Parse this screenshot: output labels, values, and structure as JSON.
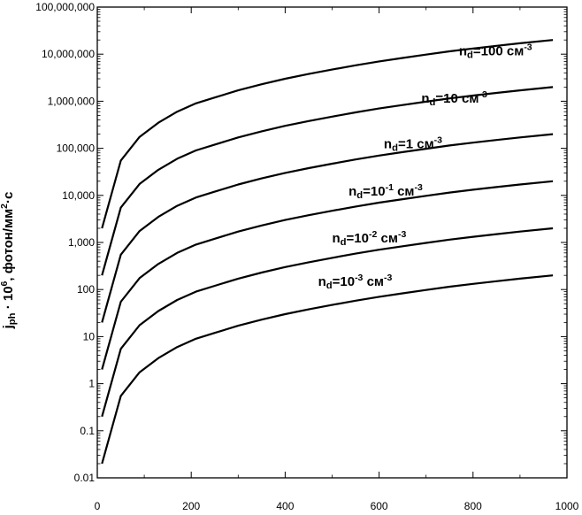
{
  "chart_data": {
    "type": "line",
    "title": "",
    "xlabel": "",
    "ylabel": {
      "parts": [
        {
          "text": "j",
          "style": "normal"
        },
        {
          "text": "ph",
          "style": "sub"
        },
        {
          "text": " · 10",
          "style": "normal"
        },
        {
          "text": "6",
          "style": "sup"
        },
        {
          "text": ", фотон/мм",
          "style": "normal"
        },
        {
          "text": "2",
          "style": "sup"
        },
        {
          "text": "·с",
          "style": "normal"
        }
      ]
    },
    "xlim": [
      0,
      1000
    ],
    "ylim": [
      0.01,
      100000000
    ],
    "yscale": "log",
    "grid": false,
    "x_ticks": [
      0,
      200,
      400,
      600,
      800,
      1000
    ],
    "x_tick_labels": [
      "0",
      "200",
      "400",
      "600",
      "800",
      "1000"
    ],
    "y_ticks": [
      0.01,
      0.1,
      1,
      10,
      100,
      1000,
      10000,
      100000,
      1000000,
      10000000,
      100000000
    ],
    "y_tick_labels": [
      "0.01",
      "0.1",
      "1",
      "10",
      "100",
      "1,000",
      "10,000",
      "100,000",
      "1,000,000",
      "10,000,000",
      "100,000,000"
    ],
    "x": [
      10,
      50,
      90,
      130,
      170,
      210,
      250,
      300,
      350,
      400,
      450,
      500,
      550,
      600,
      650,
      700,
      750,
      800,
      850,
      900,
      970
    ],
    "series": [
      {
        "values": [
          2000,
          55000,
          175000,
          350000,
          600000,
          900000,
          1200000,
          1700000,
          2300000,
          3000000,
          3800000,
          4700000,
          5800000,
          7000000,
          8300000,
          9800000,
          11500000,
          13200000,
          15000000,
          17000000,
          20000000
        ],
        "label": [
          {
            "text": "n",
            "style": "normal"
          },
          {
            "text": "d",
            "style": "sub"
          },
          {
            "text": "=100 см",
            "style": "normal"
          },
          {
            "text": "-3",
            "style": "sup"
          }
        ],
        "label_at": [
          770,
          9500000
        ]
      },
      {
        "values": [
          200,
          5500,
          17500,
          35000,
          60000,
          90000,
          120000,
          170000,
          230000,
          300000,
          380000,
          470000,
          580000,
          700000,
          830000,
          980000,
          1150000,
          1320000,
          1500000,
          1700000,
          2000000
        ],
        "label": [
          {
            "text": "n",
            "style": "normal"
          },
          {
            "text": "d",
            "style": "sub"
          },
          {
            "text": "=10 см",
            "style": "normal"
          },
          {
            "text": "-3",
            "style": "sup"
          }
        ],
        "label_at": [
          690,
          940000
        ]
      },
      {
        "values": [
          20,
          550,
          1750,
          3500,
          6000,
          9000,
          12000,
          17000,
          23000,
          30000,
          38000,
          47000,
          58000,
          70000,
          83000,
          98000,
          115000,
          132000,
          150000,
          170000,
          200000
        ],
        "label": [
          {
            "text": "n",
            "style": "normal"
          },
          {
            "text": "d",
            "style": "sub"
          },
          {
            "text": "=1 см",
            "style": "normal"
          },
          {
            "text": "-3",
            "style": "sup"
          }
        ],
        "label_at": [
          610,
          100000
        ]
      },
      {
        "values": [
          2,
          55,
          175,
          350,
          600,
          900,
          1200,
          1700,
          2300,
          3000,
          3800,
          4700,
          5800,
          7000,
          8300,
          9800,
          11500,
          13200,
          15000,
          17000,
          20000
        ],
        "label": [
          {
            "text": "n",
            "style": "normal"
          },
          {
            "text": "d",
            "style": "sub"
          },
          {
            "text": "=10",
            "style": "normal"
          },
          {
            "text": "-1",
            "style": "sup"
          },
          {
            "text": " см",
            "style": "normal"
          },
          {
            "text": "-3",
            "style": "sup"
          }
        ],
        "label_at": [
          535,
          10000
        ]
      },
      {
        "values": [
          0.2,
          5.5,
          17.5,
          35,
          60,
          90,
          120,
          170,
          230,
          300,
          380,
          470,
          580,
          700,
          830,
          980,
          1150,
          1320,
          1500,
          1700,
          2000
        ],
        "label": [
          {
            "text": "n",
            "style": "normal"
          },
          {
            "text": "d",
            "style": "sub"
          },
          {
            "text": "=10",
            "style": "normal"
          },
          {
            "text": "-2",
            "style": "sup"
          },
          {
            "text": " см",
            "style": "normal"
          },
          {
            "text": "-3",
            "style": "sup"
          }
        ],
        "label_at": [
          500,
          1000
        ]
      },
      {
        "values": [
          0.02,
          0.55,
          1.75,
          3.5,
          6,
          9,
          12,
          17,
          23,
          30,
          38,
          47,
          58,
          70,
          83,
          98,
          115,
          132,
          150,
          170,
          200
        ],
        "label": [
          {
            "text": "n",
            "style": "normal"
          },
          {
            "text": "d",
            "style": "sub"
          },
          {
            "text": "=10",
            "style": "normal"
          },
          {
            "text": "-3",
            "style": "sup"
          },
          {
            "text": " см",
            "style": "normal"
          },
          {
            "text": "-3",
            "style": "sup"
          }
        ],
        "label_at": [
          470,
          120
        ]
      }
    ]
  }
}
